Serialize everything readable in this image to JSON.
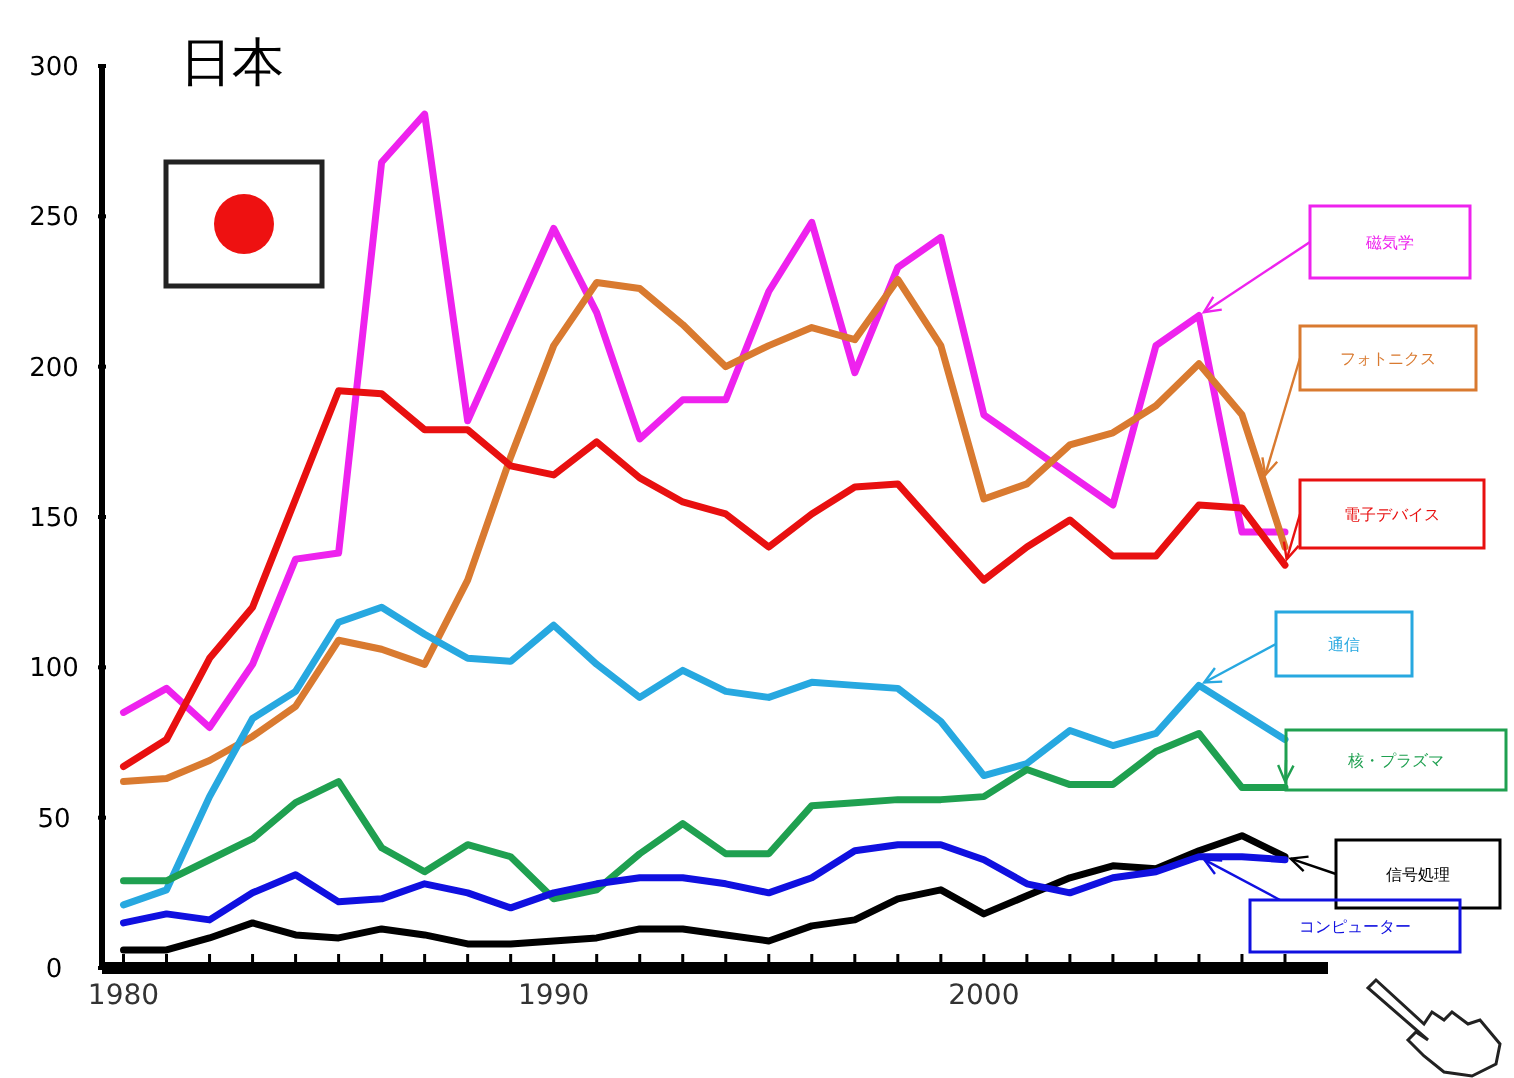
{
  "chart_data": {
    "type": "line",
    "title": "日本",
    "x": [
      1980,
      1981,
      1982,
      1983,
      1984,
      1985,
      1986,
      1987,
      1988,
      1989,
      1990,
      1991,
      1992,
      1993,
      1994,
      1995,
      1996,
      1997,
      1998,
      1999,
      2000,
      2001,
      2002,
      2003,
      2004,
      2005,
      2006,
      2007
    ],
    "series": [
      {
        "name": "磁気学",
        "color": "#ee22ee",
        "values": [
          85,
          93,
          80,
          101,
          136,
          138,
          268,
          284,
          182,
          214,
          246,
          218,
          176,
          189,
          189,
          225,
          248,
          198,
          233,
          243,
          184,
          174,
          164,
          154,
          207,
          217,
          145,
          145
        ]
      },
      {
        "name": "フォトニクス",
        "color": "#d97a30",
        "values": [
          62,
          63,
          69,
          77,
          87,
          109,
          106,
          101,
          129,
          170,
          207,
          228,
          226,
          214,
          200,
          207,
          213,
          209,
          229,
          207,
          156,
          161,
          174,
          178,
          187,
          201,
          184,
          140
        ]
      },
      {
        "name": "電子デバイス",
        "color": "#e81010",
        "values": [
          67,
          76,
          103,
          120,
          156,
          192,
          191,
          179,
          179,
          167,
          164,
          175,
          163,
          155,
          151,
          140,
          151,
          160,
          161,
          145,
          129,
          140,
          149,
          137,
          137,
          154,
          153,
          134
        ]
      },
      {
        "name": "通信",
        "color": "#27a8e0",
        "values": [
          21,
          26,
          57,
          83,
          92,
          115,
          120,
          111,
          103,
          102,
          114,
          101,
          90,
          99,
          92,
          90,
          95,
          94,
          93,
          82,
          64,
          68,
          79,
          74,
          78,
          94,
          85,
          76
        ]
      },
      {
        "name": "核・プラズマ",
        "color": "#1fa050",
        "values": [
          29,
          29,
          36,
          43,
          55,
          62,
          40,
          32,
          41,
          37,
          23,
          26,
          38,
          48,
          38,
          38,
          54,
          55,
          56,
          56,
          57,
          66,
          61,
          61,
          72,
          78,
          60,
          60
        ]
      },
      {
        "name": "信号処理",
        "color": "#000000",
        "values": [
          6,
          6,
          10,
          15,
          11,
          10,
          13,
          11,
          8,
          8,
          9,
          10,
          13,
          13,
          11,
          9,
          14,
          16,
          23,
          26,
          18,
          24,
          30,
          34,
          33,
          39,
          44,
          37
        ]
      },
      {
        "name": "コンピューター",
        "color": "#1010e0",
        "values": [
          15,
          18,
          16,
          25,
          31,
          22,
          23,
          28,
          25,
          20,
          25,
          28,
          30,
          30,
          28,
          25,
          30,
          39,
          41,
          41,
          36,
          28,
          25,
          30,
          32,
          37,
          37,
          36
        ]
      }
    ],
    "xlim": [
      1979.5,
      2008
    ],
    "ylim": [
      0,
      300
    ],
    "xticks": [
      1980,
      {
        "value": 1981,
        "label": null
      },
      {
        "value": 1982,
        "label": null
      },
      {
        "value": 1983,
        "label": null
      },
      {
        "value": 1984,
        "label": null
      },
      {
        "value": 1985,
        "label": null
      },
      {
        "value": 1986,
        "label": null
      },
      {
        "value": 1987,
        "label": null
      },
      {
        "value": 1988,
        "label": null
      },
      {
        "value": 1989,
        "label": null
      },
      1990,
      {
        "value": 1991,
        "label": null
      },
      {
        "value": 1992,
        "label": null
      },
      {
        "value": 1993,
        "label": null
      },
      {
        "value": 1994,
        "label": null
      },
      {
        "value": 1995,
        "label": null
      },
      {
        "value": 1996,
        "label": null
      },
      {
        "value": 1997,
        "label": null
      },
      {
        "value": 1998,
        "label": null
      },
      {
        "value": 1999,
        "label": null
      },
      2000,
      {
        "value": 2001,
        "label": null
      },
      {
        "value": 2002,
        "label": null
      },
      {
        "value": 2003,
        "label": null
      },
      {
        "value": 2004,
        "label": null
      },
      {
        "value": 2005,
        "label": null
      },
      {
        "value": 2006,
        "label": null
      },
      {
        "value": 2007,
        "label": null
      }
    ],
    "yticks": [
      0,
      50,
      100,
      150,
      200,
      250,
      300
    ],
    "grid": false,
    "legend": "right",
    "marker": "none",
    "line_style": "solid"
  }
}
